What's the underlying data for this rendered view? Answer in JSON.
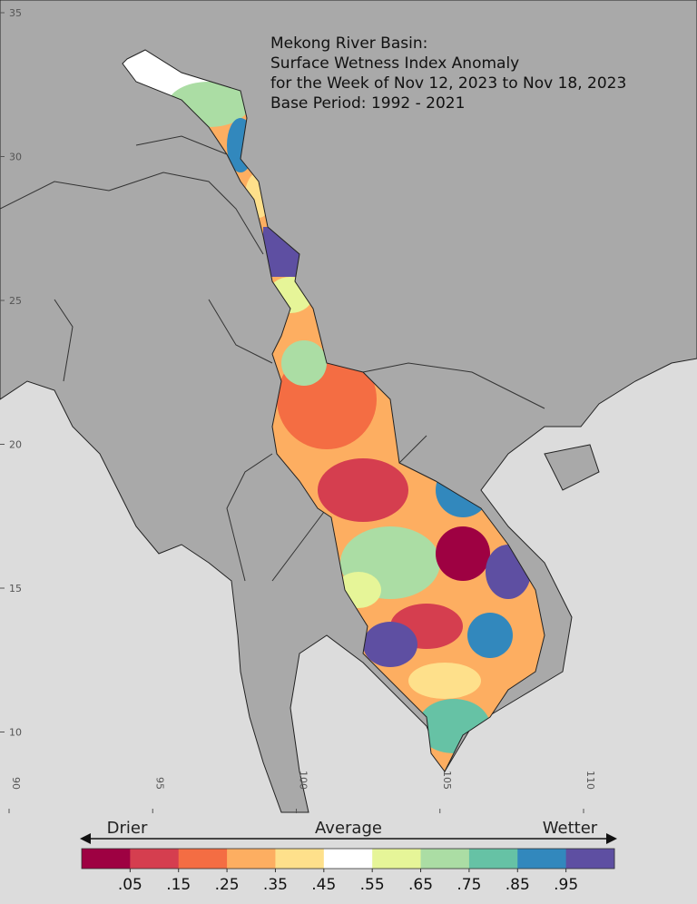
{
  "map": {
    "title_lines": [
      "Mekong River Basin:",
      "Surface Wetness Index Anomaly",
      "for the Week of Nov 12, 2023 to Nov 18, 2023",
      "Base Period: 1992 - 2021"
    ],
    "lat_ticks": [
      35,
      30,
      25,
      20,
      15,
      10
    ],
    "lon_ticks": [
      90,
      95,
      100,
      105,
      110
    ],
    "legend": {
      "drier": "Drier",
      "average": "Average",
      "wetter": "Wetter",
      "colors": [
        "#9e0142",
        "#d53e4f",
        "#f46d43",
        "#fdae61",
        "#fee08b",
        "#ffffff",
        "#e6f598",
        "#abdda4",
        "#66c2a5",
        "#3288bd",
        "#5e4fa2"
      ],
      "ticks": [
        {
          "value": 0.05,
          "label": ".05"
        },
        {
          "value": 0.15,
          "label": ".15"
        },
        {
          "value": 0.25,
          "label": ".25"
        },
        {
          "value": 0.35,
          "label": ".35"
        },
        {
          "value": 0.45,
          "label": ".45"
        },
        {
          "value": 0.55,
          "label": ".55"
        },
        {
          "value": 0.65,
          "label": ".65"
        },
        {
          "value": 0.75,
          "label": ".75"
        },
        {
          "value": 0.85,
          "label": ".85"
        },
        {
          "value": 0.95,
          "label": ".95"
        }
      ]
    }
  }
}
